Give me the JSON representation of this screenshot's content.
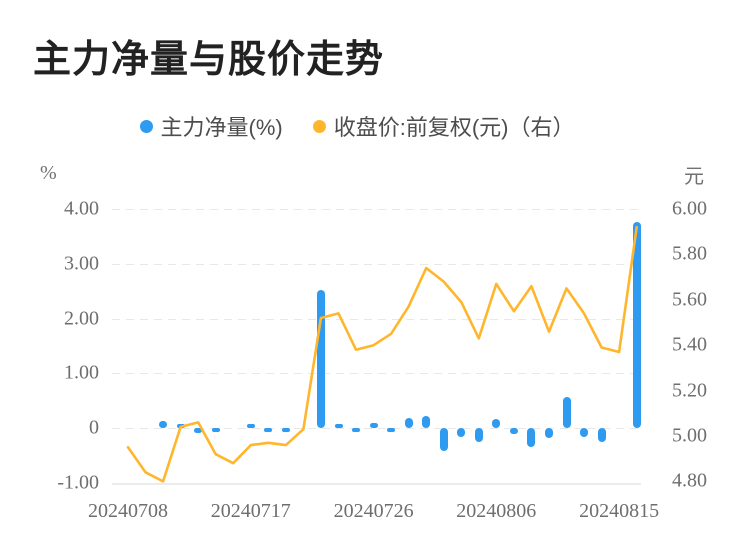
{
  "title": "主力净量与股价走势",
  "legend": [
    {
      "label": "主力净量(%)",
      "color": "#2E9BF0"
    },
    {
      "label": "收盘价:前复权(元)（右）",
      "color": "#FFB62C"
    }
  ],
  "left_axis": {
    "unit": "%",
    "ticks": [
      "4.00",
      "3.00",
      "2.00",
      "1.00",
      "0",
      "-1.00"
    ]
  },
  "right_axis": {
    "unit": "元",
    "ticks": [
      "6.00",
      "5.80",
      "5.60",
      "5.40",
      "5.20",
      "5.00",
      "4.80"
    ]
  },
  "x_axis": {
    "tick_labels": [
      "20240708",
      "20240717",
      "20240726",
      "20240806",
      "20240815"
    ]
  },
  "chart_data": {
    "type": "bar+line",
    "x": [
      "20240708",
      "20240709",
      "20240710",
      "20240711",
      "20240712",
      "20240715",
      "20240716",
      "20240717",
      "20240718",
      "20240719",
      "20240722",
      "20240723",
      "20240724",
      "20240725",
      "20240726",
      "20240729",
      "20240730",
      "20240731",
      "20240801",
      "20240802",
      "20240805",
      "20240806",
      "20240807",
      "20240808",
      "20240809",
      "20240812",
      "20240813",
      "20240814",
      "20240815",
      "20240816"
    ],
    "series": [
      {
        "name": "主力净量(%)",
        "type": "bar",
        "axis": "left",
        "color": "#2E9BF0",
        "values": [
          0,
          0,
          0.13,
          0.04,
          -0.09,
          -0.04,
          0,
          0.05,
          -0.04,
          -0.04,
          0,
          2.52,
          0.05,
          -0.04,
          0.09,
          -0.06,
          0.18,
          0.22,
          -0.42,
          -0.16,
          -0.25,
          0.16,
          -0.1,
          -0.35,
          -0.18,
          0.57,
          -0.17,
          -0.25,
          0,
          3.76
        ]
      },
      {
        "name": "收盘价:前复权(元)",
        "type": "line",
        "axis": "right",
        "color": "#FFB62C",
        "values": [
          4.95,
          4.84,
          4.8,
          5.04,
          5.06,
          4.92,
          4.88,
          4.96,
          4.97,
          4.96,
          5.03,
          5.52,
          5.54,
          5.38,
          5.4,
          5.45,
          5.57,
          5.74,
          5.68,
          5.59,
          5.43,
          5.67,
          5.55,
          5.66,
          5.46,
          5.65,
          5.54,
          5.39,
          5.37,
          5.92
        ]
      }
    ],
    "left_ylim": [
      -1.0,
      4.0
    ],
    "right_ylim": [
      4.8,
      6.0
    ],
    "grid": true,
    "legend_position": "top",
    "title": "主力净量与股价走势"
  }
}
